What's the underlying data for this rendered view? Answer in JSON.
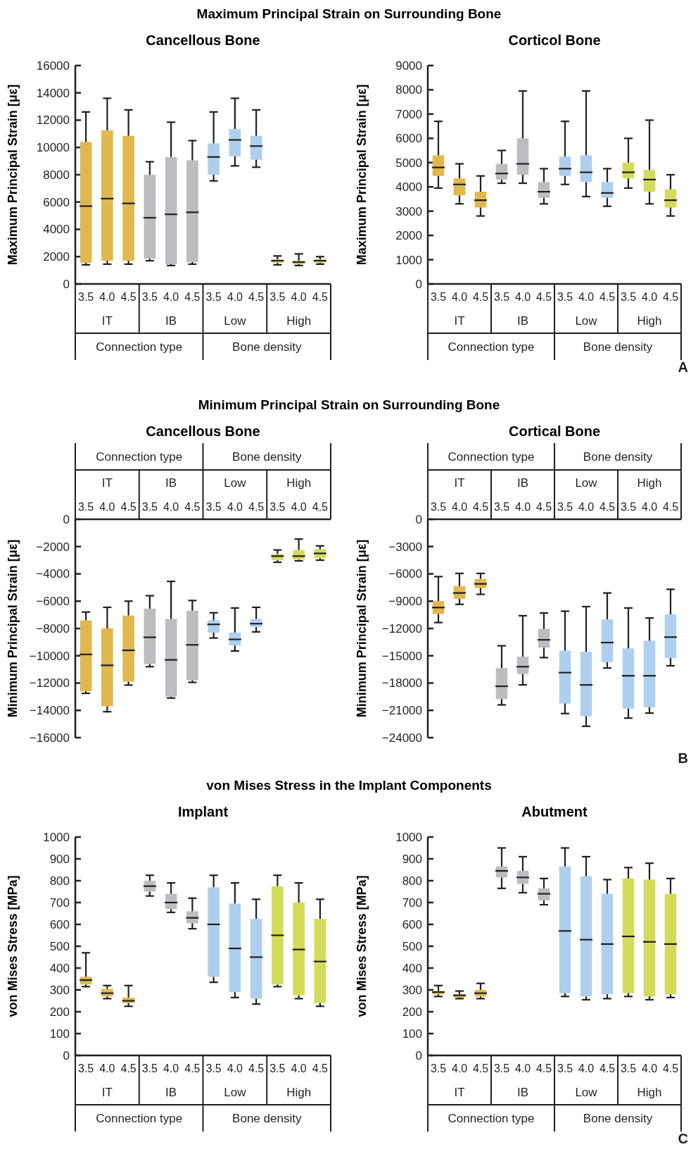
{
  "chart_data": [
    {
      "type": "box",
      "title": "Maximum Principal Strain on Surrounding Bone",
      "subtitle": "Cancellous Bone",
      "ylabel": "Maximum Principal Strain [με]",
      "categories": [
        "3.5",
        "4.0",
        "4.5",
        "3.5",
        "4.0",
        "4.5",
        "3.5",
        "4.0",
        "4.5",
        "3.5",
        "4.0",
        "4.5"
      ],
      "colors": [
        "#e0b84e",
        "#e0b84e",
        "#e0b84e",
        "#bcbdc1",
        "#bcbdc1",
        "#bcbdc1",
        "#aed0ee",
        "#aed0ee",
        "#aed0ee",
        "#d4db5a",
        "#d4db5a",
        "#d4db5a"
      ],
      "ylim": [
        0,
        16000
      ],
      "yticks": [
        0,
        2000,
        4000,
        6000,
        8000,
        10000,
        12000,
        14000,
        16000
      ],
      "annotations": [
        "IT",
        "IB",
        "Low",
        "High",
        "Connection type",
        "Bone density"
      ],
      "boxes": [
        {
          "low": 1400,
          "q1": 1550,
          "median": 5700,
          "q3": 10400,
          "high": 12600
        },
        {
          "low": 1450,
          "q1": 1700,
          "median": 6250,
          "q3": 11250,
          "high": 13600
        },
        {
          "low": 1450,
          "q1": 1700,
          "median": 5900,
          "q3": 10850,
          "high": 12750
        },
        {
          "low": 1700,
          "q1": 1850,
          "median": 4850,
          "q3": 8000,
          "high": 8950
        },
        {
          "low": 1350,
          "q1": 1450,
          "median": 5100,
          "q3": 9300,
          "high": 11850
        },
        {
          "low": 1450,
          "q1": 1600,
          "median": 5250,
          "q3": 9050,
          "high": 10500
        },
        {
          "low": 7550,
          "q1": 8000,
          "median": 9300,
          "q3": 10300,
          "high": 12600
        },
        {
          "low": 8650,
          "q1": 9350,
          "median": 10550,
          "q3": 11350,
          "high": 13600
        },
        {
          "low": 8550,
          "q1": 9100,
          "median": 10100,
          "q3": 10850,
          "high": 12750
        },
        {
          "low": 1400,
          "q1": 1550,
          "median": 1700,
          "q3": 1800,
          "high": 2050
        },
        {
          "low": 1350,
          "q1": 1450,
          "median": 1600,
          "q3": 1700,
          "high": 2200
        },
        {
          "low": 1450,
          "q1": 1550,
          "median": 1700,
          "q3": 1800,
          "high": 2000
        }
      ]
    },
    {
      "type": "box",
      "subtitle": "Corticol Bone",
      "ylabel": "Maximum Principal Strain [με]",
      "categories": [
        "3.5",
        "4.0",
        "4.5",
        "3.5",
        "4.0",
        "4.5",
        "3.5",
        "4.0",
        "4.5",
        "3.5",
        "4.0",
        "4.5"
      ],
      "colors": [
        "#e0b84e",
        "#e0b84e",
        "#e0b84e",
        "#bcbdc1",
        "#bcbdc1",
        "#bcbdc1",
        "#aed0ee",
        "#aed0ee",
        "#aed0ee",
        "#d4db5a",
        "#d4db5a",
        "#d4db5a"
      ],
      "ylim": [
        0,
        9000
      ],
      "yticks": [
        0,
        1000,
        2000,
        3000,
        4000,
        5000,
        6000,
        7000,
        8000,
        9000
      ],
      "annotations": [
        "IT",
        "IB",
        "Low",
        "High",
        "Connection type",
        "Bone density",
        "A"
      ],
      "boxes": [
        {
          "low": 3950,
          "q1": 4450,
          "median": 4800,
          "q3": 5300,
          "high": 6700
        },
        {
          "low": 3300,
          "q1": 3650,
          "median": 4100,
          "q3": 4350,
          "high": 4950
        },
        {
          "low": 2800,
          "q1": 3150,
          "median": 3450,
          "q3": 3800,
          "high": 4450
        },
        {
          "low": 4150,
          "q1": 4300,
          "median": 4550,
          "q3": 4950,
          "high": 5500
        },
        {
          "low": 4150,
          "q1": 4500,
          "median": 4950,
          "q3": 6000,
          "high": 7950
        },
        {
          "low": 3300,
          "q1": 3550,
          "median": 3800,
          "q3": 4200,
          "high": 4750
        },
        {
          "low": 4100,
          "q1": 4450,
          "median": 4750,
          "q3": 5250,
          "high": 6700
        },
        {
          "low": 3600,
          "q1": 4200,
          "median": 4600,
          "q3": 5300,
          "high": 7950
        },
        {
          "low": 3200,
          "q1": 3550,
          "median": 3750,
          "q3": 4200,
          "high": 4750
        },
        {
          "low": 3950,
          "q1": 4350,
          "median": 4600,
          "q3": 5000,
          "high": 6000
        },
        {
          "low": 3300,
          "q1": 3800,
          "median": 4300,
          "q3": 4700,
          "high": 6750
        },
        {
          "low": 2800,
          "q1": 3150,
          "median": 3450,
          "q3": 3900,
          "high": 4500
        }
      ]
    },
    {
      "type": "box",
      "title": "Minimum Principal Strain on Surrounding Bone",
      "subtitle": "Cancellous Bone",
      "ylabel": "Minimum Principal Strain [με]",
      "categories": [
        "3.5",
        "4.0",
        "4.5",
        "3.5",
        "4.0",
        "4.5",
        "3.5",
        "4.0",
        "4.5",
        "3.5",
        "4.0",
        "4.5"
      ],
      "colors": [
        "#e0b84e",
        "#e0b84e",
        "#e0b84e",
        "#bcbdc1",
        "#bcbdc1",
        "#bcbdc1",
        "#aed0ee",
        "#aed0ee",
        "#aed0ee",
        "#d4db5a",
        "#d4db5a",
        "#d4db5a"
      ],
      "ylim": [
        -16000,
        0
      ],
      "yticks": [
        -16000,
        -14000,
        -12000,
        -10000,
        -8000,
        -6000,
        -4000,
        -2000,
        0
      ],
      "annotations": [
        "IT",
        "IB",
        "Low",
        "High",
        "Connection type",
        "Bone density"
      ],
      "boxes": [
        {
          "low": -12750,
          "q1": -12600,
          "median": -9900,
          "q3": -7400,
          "high": -6800
        },
        {
          "low": -14100,
          "q1": -13700,
          "median": -10700,
          "q3": -8000,
          "high": -6450
        },
        {
          "low": -12150,
          "q1": -11900,
          "median": -9600,
          "q3": -7050,
          "high": -6000
        },
        {
          "low": -10800,
          "q1": -10600,
          "median": -8650,
          "q3": -6550,
          "high": -5600
        },
        {
          "low": -13100,
          "q1": -13000,
          "median": -10300,
          "q3": -7300,
          "high": -4550
        },
        {
          "low": -11950,
          "q1": -11800,
          "median": -9200,
          "q3": -6700,
          "high": -5950
        },
        {
          "low": -8700,
          "q1": -8300,
          "median": -7700,
          "q3": -7400,
          "high": -6850
        },
        {
          "low": -9650,
          "q1": -9250,
          "median": -8800,
          "q3": -8300,
          "high": -6500
        },
        {
          "low": -8250,
          "q1": -7900,
          "median": -7650,
          "q3": -7300,
          "high": -6450
        },
        {
          "low": -3150,
          "q1": -3000,
          "median": -2700,
          "q3": -2550,
          "high": -2250
        },
        {
          "low": -3050,
          "q1": -2950,
          "median": -2700,
          "q3": -2250,
          "high": -1450
        },
        {
          "low": -3000,
          "q1": -2850,
          "median": -2500,
          "q3": -2200,
          "high": -1950
        }
      ]
    },
    {
      "type": "box",
      "subtitle": "Cortical Bone",
      "ylabel": "Minimum Principal Strain [με]",
      "categories": [
        "3.5",
        "4.0",
        "4.5",
        "3.5",
        "4.0",
        "4.5",
        "3.5",
        "4.0",
        "4.5",
        "3.5",
        "4.0",
        "4.5"
      ],
      "colors": [
        "#e0b84e",
        "#e0b84e",
        "#e0b84e",
        "#bcbdc1",
        "#bcbdc1",
        "#bcbdc1",
        "#aed0ee",
        "#aed0ee",
        "#aed0ee",
        "#aed0ee",
        "#aed0ee",
        "#aed0ee"
      ],
      "ylim": [
        -24000,
        0
      ],
      "yticks": [
        -24000,
        -21000,
        -18000,
        -15000,
        -12000,
        -9000,
        -6000,
        -3000,
        0
      ],
      "annotations": [
        "IT",
        "IB",
        "Low",
        "High",
        "Connection type",
        "Bone density",
        "B"
      ],
      "boxes": [
        {
          "low": -11350,
          "q1": -10400,
          "median": -9700,
          "q3": -9000,
          "high": -6300
        },
        {
          "low": -9350,
          "q1": -8750,
          "median": -8100,
          "q3": -7350,
          "high": -5950
        },
        {
          "low": -8250,
          "q1": -7550,
          "median": -7100,
          "q3": -6550,
          "high": -5950
        },
        {
          "low": -20400,
          "q1": -19750,
          "median": -18350,
          "q3": -16350,
          "high": -13900
        },
        {
          "low": -18200,
          "q1": -17000,
          "median": -16200,
          "q3": -15100,
          "high": -10600
        },
        {
          "low": -15200,
          "q1": -14100,
          "median": -13250,
          "q3": -12050,
          "high": -10300
        },
        {
          "low": -21350,
          "q1": -20250,
          "median": -16850,
          "q3": -14450,
          "high": -10100
        },
        {
          "low": -22750,
          "q1": -21650,
          "median": -18200,
          "q3": -14550,
          "high": -9600
        },
        {
          "low": -16350,
          "q1": -15700,
          "median": -13550,
          "q3": -11000,
          "high": -8100
        },
        {
          "low": -21850,
          "q1": -20800,
          "median": -17200,
          "q3": -14200,
          "high": -9750
        },
        {
          "low": -21300,
          "q1": -20650,
          "median": -17200,
          "q3": -13350,
          "high": -10850
        },
        {
          "low": -16100,
          "q1": -15250,
          "median": -12950,
          "q3": -10450,
          "high": -7700
        }
      ]
    },
    {
      "type": "box",
      "title": "von Mises Stress in the Implant Components",
      "subtitle": "Implant",
      "ylabel": "von Mises Stress [MPa]",
      "categories": [
        "3.5",
        "4.0",
        "4.5",
        "3.5",
        "4.0",
        "4.5",
        "3.5",
        "4.0",
        "4.5",
        "3.5",
        "4.0",
        "4.5"
      ],
      "colors": [
        "#e0b84e",
        "#e0b84e",
        "#e0b84e",
        "#bcbdc1",
        "#bcbdc1",
        "#bcbdc1",
        "#aed0ee",
        "#aed0ee",
        "#aed0ee",
        "#d4db5a",
        "#d4db5a",
        "#d4db5a"
      ],
      "ylim": [
        0,
        1000
      ],
      "yticks": [
        0,
        100,
        200,
        300,
        400,
        500,
        600,
        700,
        800,
        900,
        1000
      ],
      "annotations": [
        "IT",
        "IB",
        "Low",
        "High",
        "Connection type",
        "Bone density"
      ],
      "boxes": [
        {
          "low": 315,
          "q1": 325,
          "median": 345,
          "q3": 360,
          "high": 470
        },
        {
          "low": 260,
          "q1": 270,
          "median": 285,
          "q3": 305,
          "high": 320
        },
        {
          "low": 225,
          "q1": 240,
          "median": 250,
          "q3": 265,
          "high": 320
        },
        {
          "low": 730,
          "q1": 750,
          "median": 775,
          "q3": 800,
          "high": 825
        },
        {
          "low": 655,
          "q1": 670,
          "median": 700,
          "q3": 740,
          "high": 790
        },
        {
          "low": 580,
          "q1": 605,
          "median": 630,
          "q3": 660,
          "high": 720
        },
        {
          "low": 335,
          "q1": 360,
          "median": 600,
          "q3": 770,
          "high": 825
        },
        {
          "low": 265,
          "q1": 290,
          "median": 490,
          "q3": 695,
          "high": 790
        },
        {
          "low": 235,
          "q1": 260,
          "median": 450,
          "q3": 625,
          "high": 715
        },
        {
          "low": 315,
          "q1": 325,
          "median": 550,
          "q3": 775,
          "high": 825
        },
        {
          "low": 260,
          "q1": 275,
          "median": 485,
          "q3": 700,
          "high": 790
        },
        {
          "low": 225,
          "q1": 240,
          "median": 430,
          "q3": 625,
          "high": 715
        }
      ]
    },
    {
      "type": "box",
      "subtitle": "Abutment",
      "ylabel": "von Mises Stress [MPa]",
      "categories": [
        "3.5",
        "4.0",
        "4.5",
        "3.5",
        "4.0",
        "4.5",
        "3.5",
        "4.0",
        "4.5",
        "3.5",
        "4.0",
        "4.5"
      ],
      "colors": [
        "#e0b84e",
        "#e0b84e",
        "#e0b84e",
        "#bcbdc1",
        "#bcbdc1",
        "#bcbdc1",
        "#aed0ee",
        "#aed0ee",
        "#aed0ee",
        "#d4db5a",
        "#d4db5a",
        "#d4db5a"
      ],
      "ylim": [
        0,
        1000
      ],
      "yticks": [
        0,
        100,
        200,
        300,
        400,
        500,
        600,
        700,
        800,
        900,
        1000
      ],
      "annotations": [
        "IT",
        "IB",
        "Low",
        "High",
        "Connection type",
        "Bone density",
        "C"
      ],
      "boxes": [
        {
          "low": 270,
          "q1": 280,
          "median": 290,
          "q3": 295,
          "high": 320
        },
        {
          "low": 260,
          "q1": 265,
          "median": 275,
          "q3": 280,
          "high": 295
        },
        {
          "low": 260,
          "q1": 270,
          "median": 285,
          "q3": 300,
          "high": 330
        },
        {
          "low": 765,
          "q1": 815,
          "median": 845,
          "q3": 865,
          "high": 950
        },
        {
          "low": 745,
          "q1": 785,
          "median": 815,
          "q3": 845,
          "high": 910
        },
        {
          "low": 690,
          "q1": 710,
          "median": 740,
          "q3": 765,
          "high": 810
        },
        {
          "low": 270,
          "q1": 285,
          "median": 570,
          "q3": 865,
          "high": 950
        },
        {
          "low": 255,
          "q1": 270,
          "median": 530,
          "q3": 820,
          "high": 910
        },
        {
          "low": 260,
          "q1": 280,
          "median": 510,
          "q3": 740,
          "high": 805
        },
        {
          "low": 270,
          "q1": 285,
          "median": 545,
          "q3": 810,
          "high": 860
        },
        {
          "low": 255,
          "q1": 270,
          "median": 520,
          "q3": 805,
          "high": 880
        },
        {
          "low": 265,
          "q1": 280,
          "median": 510,
          "q3": 740,
          "high": 810
        }
      ]
    }
  ]
}
